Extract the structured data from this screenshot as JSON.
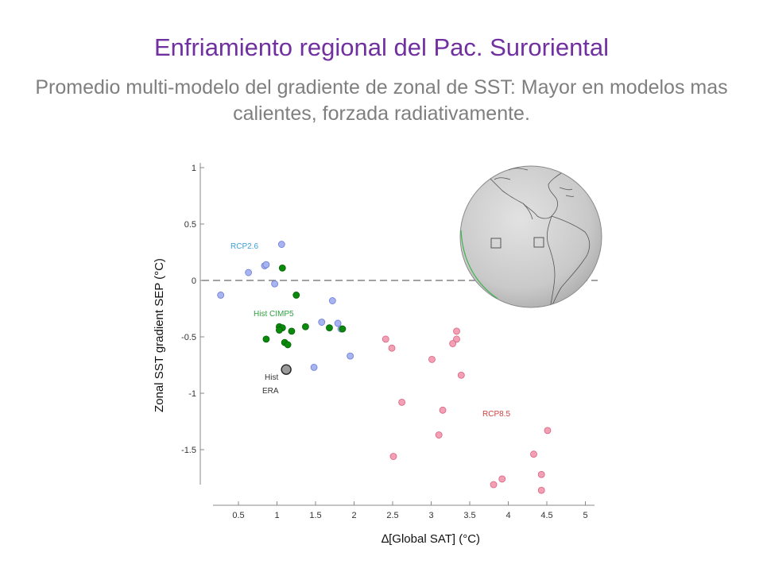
{
  "slide": {
    "title": "Enfriamiento regional del Pac. Suroriental",
    "subtitle": "Promedio multi-modelo del gradiente de zonal de SST: Mayor en modelos mas calientes, forzada radiativamente."
  },
  "chart_data": {
    "type": "scatter",
    "xlabel": "∆[Global SAT]  (°C)",
    "ylabel": "Zonal SST gradient SEP  (°C)",
    "xlim": [
      0.2,
      5.0
    ],
    "ylim": [
      -1.85,
      1.0
    ],
    "xticks": [
      "0.5",
      "1",
      "1.5",
      "2",
      "2.5",
      "3",
      "3.5",
      "4",
      "4.5",
      "5"
    ],
    "yticks": [
      "1",
      "0.5",
      "0",
      "-0.5",
      "-1",
      "-1.5"
    ],
    "reference_line_y": 0,
    "series": [
      {
        "name": "RCP2.6",
        "color": "#a8b4f0",
        "stroke": "#6a7bd8",
        "points": [
          [
            1.06,
            0.32
          ],
          [
            0.84,
            0.13
          ],
          [
            0.86,
            0.14
          ],
          [
            0.63,
            0.07
          ],
          [
            0.97,
            -0.03
          ],
          [
            0.27,
            -0.13
          ],
          [
            1.72,
            -0.18
          ],
          [
            1.58,
            -0.37
          ],
          [
            1.79,
            -0.38
          ],
          [
            1.83,
            -0.43
          ],
          [
            1.95,
            -0.67
          ],
          [
            1.48,
            -0.77
          ]
        ]
      },
      {
        "name": "Hist CIMP5",
        "color": "#0a8a0a",
        "stroke": "#056005",
        "points": [
          [
            1.07,
            0.11
          ],
          [
            1.25,
            -0.13
          ],
          [
            1.03,
            -0.41
          ],
          [
            1.07,
            -0.42
          ],
          [
            1.03,
            -0.44
          ],
          [
            1.19,
            -0.45
          ],
          [
            1.37,
            -0.41
          ],
          [
            1.68,
            -0.42
          ],
          [
            1.85,
            -0.43
          ],
          [
            0.86,
            -0.52
          ],
          [
            1.1,
            -0.55
          ],
          [
            1.14,
            -0.57
          ]
        ]
      },
      {
        "name": "Hist ERA",
        "color": "#9a9a9a",
        "stroke": "#222222",
        "large": true,
        "points": [
          [
            1.12,
            -0.79
          ]
        ]
      },
      {
        "name": "RCP8.5",
        "color": "#f4a0b4",
        "stroke": "#d86080",
        "points": [
          [
            3.33,
            -0.45
          ],
          [
            3.33,
            -0.52
          ],
          [
            3.28,
            -0.56
          ],
          [
            2.41,
            -0.52
          ],
          [
            2.49,
            -0.6
          ],
          [
            3.01,
            -0.7
          ],
          [
            3.39,
            -0.84
          ],
          [
            2.62,
            -1.08
          ],
          [
            3.15,
            -1.15
          ],
          [
            3.1,
            -1.37
          ],
          [
            2.51,
            -1.56
          ],
          [
            4.51,
            -1.33
          ],
          [
            4.33,
            -1.54
          ],
          [
            4.43,
            -1.72
          ],
          [
            3.92,
            -1.76
          ],
          [
            3.81,
            -1.81
          ],
          [
            4.43,
            -1.86
          ]
        ]
      }
    ]
  },
  "annotations": {
    "rcp26": "RCP2.6",
    "hist_cimp5": "Hist CIMP5",
    "hist_era_1": "Hist",
    "hist_era_2": "ERA",
    "rcp85": "RCP8.5"
  },
  "inset": {
    "name": "globe-map",
    "description_color": "#bfbfbf"
  }
}
